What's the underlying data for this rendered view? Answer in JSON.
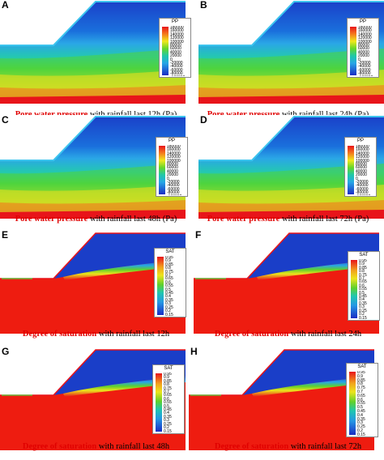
{
  "panels": [
    {
      "label": "A",
      "kind": "pp",
      "caption_hl": "Pore water pressure",
      "caption_rest": " with rainfall last 12h (Pa)"
    },
    {
      "label": "B",
      "kind": "pp",
      "caption_hl": "Pore water pressure",
      "caption_rest": " with rainfall last 24h (Pa)"
    },
    {
      "label": "C",
      "kind": "pp",
      "caption_hl": "Pore water pressure",
      "caption_rest": " with rainfall last 48h (Pa)"
    },
    {
      "label": "D",
      "kind": "pp",
      "caption_hl": "Pore water pressure",
      "caption_rest": " with rainfall last 72h (Pa)"
    },
    {
      "label": "E",
      "kind": "sat",
      "caption_hl": "Degree of saturation",
      "caption_rest": " with rainfall last 12h"
    },
    {
      "label": "F",
      "kind": "sat",
      "caption_hl": "Degree of saturation",
      "caption_rest": " with rainfall last 24h"
    },
    {
      "label": "G",
      "kind": "sat",
      "caption_hl": "Degree of saturation",
      "caption_rest": " with rainfall last 48h"
    },
    {
      "label": "H",
      "kind": "sat",
      "caption_hl": "Degree of saturation",
      "caption_rest": " with rainfall last 72h"
    }
  ],
  "legend_pp": {
    "title": "PP",
    "ticks": [
      "180000",
      "160000",
      "140000",
      "120000",
      "100000",
      "80000",
      "60000",
      "40000",
      "20000",
      "0",
      "-20000",
      "-40000",
      "-60000",
      "-80000",
      "-100000"
    ]
  },
  "legend_sat": {
    "title": "SAT",
    "ticks": [
      "0.95",
      "0.9",
      "0.85",
      "0.8",
      "0.75",
      "0.7",
      "0.65",
      "0.6",
      "0.55",
      "0.5",
      "0.45",
      "0.4",
      "0.35",
      "0.3",
      "0.25",
      "0.2",
      "0.15"
    ]
  },
  "colors": {
    "caption_highlight": "#e00000",
    "accent_red": "#ee1c10",
    "accent_blue": "#1a3ec8"
  }
}
